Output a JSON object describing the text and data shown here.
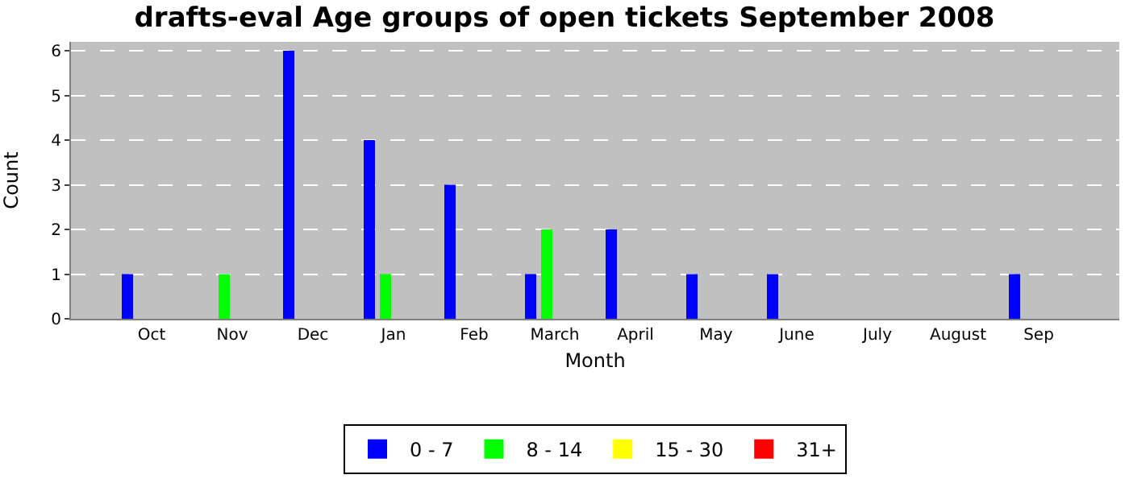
{
  "chart_data": {
    "type": "bar",
    "title": "drafts-eval Age groups of open tickets September 2008",
    "xlabel": "Month",
    "ylabel": "Count",
    "categories": [
      "Oct",
      "Nov",
      "Dec",
      "Jan",
      "Feb",
      "March",
      "April",
      "May",
      "June",
      "July",
      "August",
      "Sep"
    ],
    "series": [
      {
        "name": "0 - 7",
        "color": "#0000ff",
        "values": [
          1,
          0,
          6,
          4,
          3,
          1,
          2,
          1,
          1,
          0,
          0,
          1
        ]
      },
      {
        "name": "8 - 14",
        "color": "#00ff00",
        "values": [
          0,
          1,
          0,
          1,
          0,
          2,
          0,
          0,
          0,
          0,
          0,
          0
        ]
      },
      {
        "name": "15 - 30",
        "color": "#ffff00",
        "values": [
          0,
          0,
          0,
          0,
          0,
          0,
          0,
          0,
          0,
          0,
          0,
          0
        ]
      },
      {
        "name": "31+",
        "color": "#ff0000",
        "values": [
          0,
          0,
          0,
          0,
          0,
          0,
          0,
          0,
          0,
          0,
          0,
          0
        ]
      }
    ],
    "ylim": [
      0,
      6.2
    ],
    "yticks": [
      0,
      1,
      2,
      3,
      4,
      5,
      6
    ],
    "grid": "y",
    "legend": "bottom"
  }
}
